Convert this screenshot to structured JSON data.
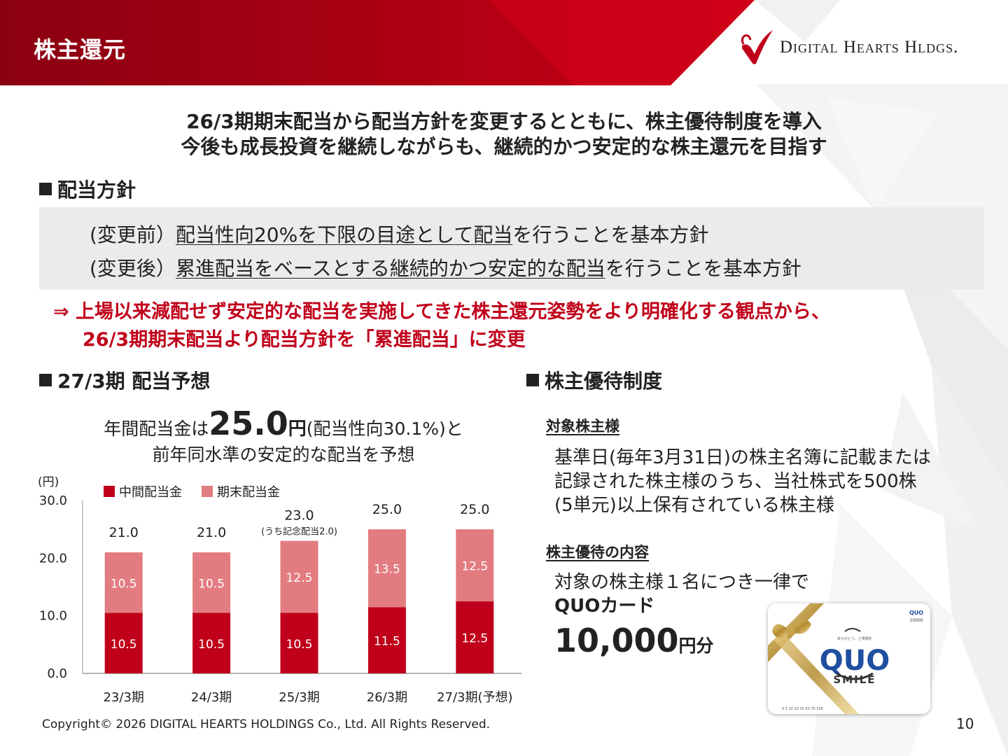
{
  "header": {
    "title": "株主還元",
    "logo_text": "Digital Hearts Hldgs.",
    "colors": {
      "red": "#c0001a",
      "dark_red": "#8a0012"
    }
  },
  "headline": {
    "line1": "26/3期期末配当から配当方針を変更するとともに、株主優待制度を導入",
    "line2": "今後も成長投資を継続しながらも、継続的かつ安定的な株主還元を目指す"
  },
  "policy": {
    "heading": "配当方針",
    "before_label": "(変更前）",
    "before_underlined": "配当性向20%を下限の目途として配当",
    "before_rest": "を行うことを基本方針",
    "after_label": "(変更後）",
    "after_underlined": "累進配当をベースとする継続的かつ安定的な配当",
    "after_rest": "を行うことを基本方針",
    "note_arrow": "⇒",
    "note_line1": "上場以来減配せず安定的な配当を実施してきた株主還元姿勢をより明確化する観点から、",
    "note_line2": "26/3期期末配当より配当方針を「累進配当」に変更"
  },
  "forecast": {
    "heading": "27/3期 配当予想",
    "line1_pre": "年間配当金は",
    "line1_num": "25.0",
    "line1_yen": "円",
    "line1_post": "(配当性向30.1%)と",
    "line2": "前年同水準の安定的な配当を予想"
  },
  "chart_data": {
    "type": "bar",
    "stacked": true,
    "unit_label": "(円)",
    "categories": [
      "23/3期",
      "24/3期",
      "25/3期",
      "26/3期",
      "27/3期(予想)"
    ],
    "series": [
      {
        "name": "中間配当金",
        "color": "#c0001a",
        "values": [
          10.5,
          10.5,
          10.5,
          11.5,
          12.5
        ],
        "labels": [
          "10.5",
          "10.5",
          "10.5",
          "11.5",
          "12.5"
        ]
      },
      {
        "name": "期末配当金",
        "color": "#e27c80",
        "values": [
          10.5,
          10.5,
          12.5,
          13.5,
          12.5
        ],
        "labels": [
          "10.5",
          "10.5",
          "12.5",
          "13.5",
          "12.5"
        ]
      }
    ],
    "totals": [
      "21.0",
      "21.0",
      "23.0",
      "25.0",
      "25.0"
    ],
    "annotation": {
      "category_index": 2,
      "text": "(うち記念配当2.0)"
    },
    "ylim": [
      0,
      30
    ],
    "yticks": [
      "0.0",
      "10.0",
      "20.0",
      "30.0"
    ],
    "legend_position": "top-left",
    "grid": false
  },
  "benefit": {
    "heading": "株主優待制度",
    "target_head": "対象株主様",
    "target_line1": "基準日(毎年3月31日)の株主名簿に記載または",
    "target_line2": "記録された株主様のうち、当社株式を500株",
    "target_line3": "(5単元)以上保有されている株主様",
    "content_head": "株主優待の内容",
    "content_line1": "対象の株主様１名につき一律で",
    "content_line2": "QUOカード",
    "content_amount": "10,000",
    "content_unit": "円分"
  },
  "quo_card": {
    "brand": "QUO",
    "sub": "SMILE",
    "corner_brand": "QUO",
    "corner_value": "10000",
    "tagline": "ありがとう、と笑顔を",
    "scale": "0  5  10  20  30  50  70  100"
  },
  "footer": {
    "copyright": "Copyright© 2026  DIGITAL HEARTS HOLDINGS Co., Ltd. All Rights Reserved.",
    "page": "10"
  }
}
